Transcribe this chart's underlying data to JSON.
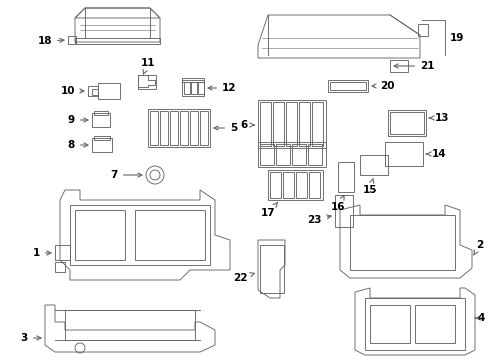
{
  "bg_color": "#ffffff",
  "line_color": "#666666",
  "label_color": "#000000",
  "figsize": [
    4.9,
    3.6
  ],
  "dpi": 100,
  "lw": 0.65
}
